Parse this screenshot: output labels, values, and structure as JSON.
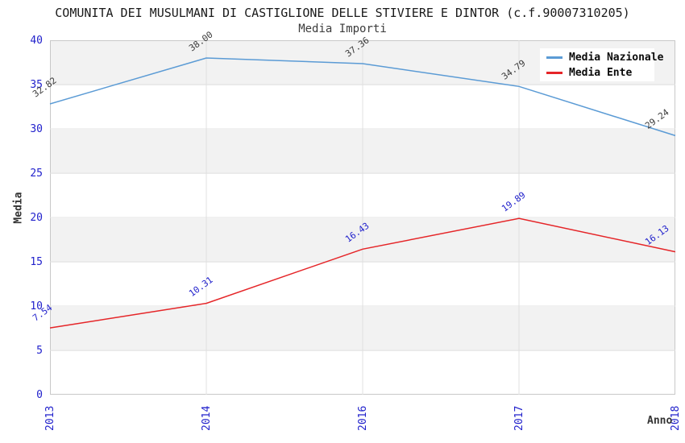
{
  "header": {
    "title": "COMUNITA DEI MUSULMANI DI CASTIGLIONE DELLE STIVIERE E DINTOR (c.f.90007310205)",
    "subtitle": "Media Importi"
  },
  "legend": {
    "position": "top-right",
    "items": [
      {
        "label": "Media Nazionale",
        "color": "#5b9bd5"
      },
      {
        "label": "Media Ente",
        "color": "#e52528"
      }
    ]
  },
  "chart_data": {
    "type": "line",
    "title": "COMUNITA DEI MUSULMANI DI CASTIGLIONE DELLE STIVIERE E DINTOR (c.f.90007310205)",
    "subtitle": "Media Importi",
    "xlabel": "Anno",
    "ylabel": "Media",
    "x_categories": [
      "2013",
      "2014",
      "2016",
      "2017",
      "2018"
    ],
    "series": [
      {
        "name": "Media Nazionale",
        "color": "#5b9bd5",
        "label_color": "#3a3a3a",
        "values": [
          32.82,
          38.0,
          37.36,
          34.79,
          29.24
        ],
        "value_labels": [
          "32.82",
          "38.00",
          "37.36",
          "34.79",
          "29.24"
        ]
      },
      {
        "name": "Media Ente",
        "color": "#e52528",
        "label_color": "#2222cc",
        "values": [
          7.54,
          10.31,
          16.43,
          19.89,
          16.13
        ],
        "value_labels": [
          "7.54",
          "10.31",
          "16.43",
          "19.89",
          "16.13"
        ]
      }
    ],
    "ylim": [
      0,
      40
    ],
    "ytick_step": 5,
    "yticks": [
      "0",
      "5",
      "10",
      "15",
      "20",
      "25",
      "30",
      "35",
      "40"
    ],
    "grid": "alternating-horizontal-bands",
    "legend_position": "top-right",
    "styles": {
      "band_color": "#f2f2f2",
      "plot_border_color": "#c8c8c8",
      "axis_tick_color": "#2222cc",
      "h_gridline_color": "#e3e3e3",
      "v_gridline_color": "#e0e0e0"
    }
  }
}
